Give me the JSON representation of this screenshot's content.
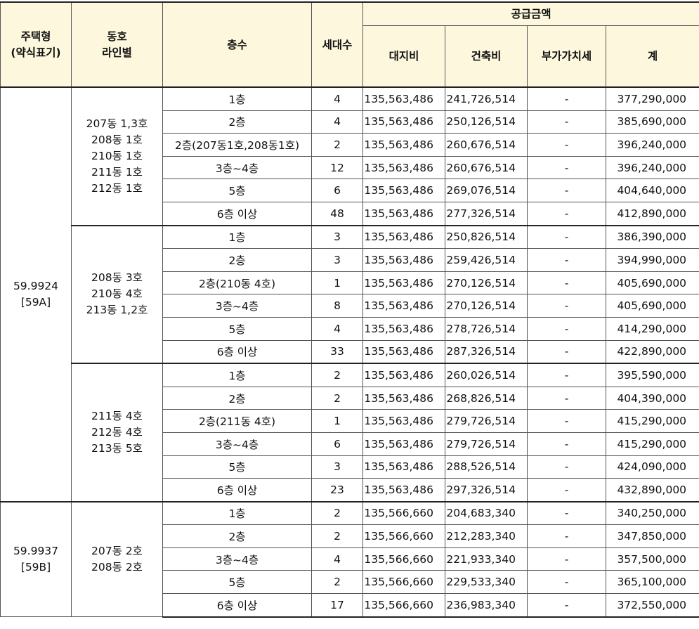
{
  "headers": {
    "type": "주택형\n(약식표기)",
    "line": "동호\n라인별",
    "floor": "층수",
    "units": "세대수",
    "supply": "공급금액",
    "land": "대지비",
    "build": "건축비",
    "vat": "부가가치세",
    "total": "계"
  },
  "groups": [
    {
      "type": "59.9924\n[59A]",
      "subgroups": [
        {
          "line": "207동 1,3호\n208동 1호\n210동 1호\n211동 1호\n212동 1호",
          "rows": [
            {
              "floor": "1층",
              "units": "4",
              "land": "135,563,486",
              "build": "241,726,514",
              "vat": "-",
              "total": "377,290,000"
            },
            {
              "floor": "2층",
              "units": "4",
              "land": "135,563,486",
              "build": "250,126,514",
              "vat": "-",
              "total": "385,690,000"
            },
            {
              "floor": "2층(207동1호,208동1호)",
              "units": "2",
              "land": "135,563,486",
              "build": "260,676,514",
              "vat": "-",
              "total": "396,240,000"
            },
            {
              "floor": "3층~4층",
              "units": "12",
              "land": "135,563,486",
              "build": "260,676,514",
              "vat": "-",
              "total": "396,240,000"
            },
            {
              "floor": "5층",
              "units": "6",
              "land": "135,563,486",
              "build": "269,076,514",
              "vat": "-",
              "total": "404,640,000"
            },
            {
              "floor": "6층 이상",
              "units": "48",
              "land": "135,563,486",
              "build": "277,326,514",
              "vat": "-",
              "total": "412,890,000"
            }
          ]
        },
        {
          "line": "208동 3호\n210동  4호\n213동 1,2호",
          "rows": [
            {
              "floor": "1층",
              "units": "3",
              "land": "135,563,486",
              "build": "250,826,514",
              "vat": "-",
              "total": "386,390,000"
            },
            {
              "floor": "2층",
              "units": "3",
              "land": "135,563,486",
              "build": "259,426,514",
              "vat": "-",
              "total": "394,990,000"
            },
            {
              "floor": "2층(210동 4호)",
              "units": "1",
              "land": "135,563,486",
              "build": "270,126,514",
              "vat": "-",
              "total": "405,690,000"
            },
            {
              "floor": "3층~4층",
              "units": "8",
              "land": "135,563,486",
              "build": "270,126,514",
              "vat": "-",
              "total": "405,690,000"
            },
            {
              "floor": "5층",
              "units": "4",
              "land": "135,563,486",
              "build": "278,726,514",
              "vat": "-",
              "total": "414,290,000"
            },
            {
              "floor": "6층 이상",
              "units": "33",
              "land": "135,563,486",
              "build": "287,326,514",
              "vat": "-",
              "total": "422,890,000"
            }
          ]
        },
        {
          "line": "211동 4호\n212동 4호\n213동 5호",
          "rows": [
            {
              "floor": "1층",
              "units": "2",
              "land": "135,563,486",
              "build": "260,026,514",
              "vat": "-",
              "total": "395,590,000"
            },
            {
              "floor": "2층",
              "units": "2",
              "land": "135,563,486",
              "build": "268,826,514",
              "vat": "-",
              "total": "404,390,000"
            },
            {
              "floor": "2층(211동 4호)",
              "units": "1",
              "land": "135,563,486",
              "build": "279,726,514",
              "vat": "-",
              "total": "415,290,000"
            },
            {
              "floor": "3층~4층",
              "units": "6",
              "land": "135,563,486",
              "build": "279,726,514",
              "vat": "-",
              "total": "415,290,000"
            },
            {
              "floor": "5층",
              "units": "3",
              "land": "135,563,486",
              "build": "288,526,514",
              "vat": "-",
              "total": "424,090,000"
            },
            {
              "floor": "6층 이상",
              "units": "23",
              "land": "135,563,486",
              "build": "297,326,514",
              "vat": "-",
              "total": "432,890,000"
            }
          ]
        }
      ]
    },
    {
      "type": "59.9937\n[59B]",
      "subgroups": [
        {
          "line": "207동 2호\n208동 2호",
          "rows": [
            {
              "floor": "1층",
              "units": "2",
              "land": "135,566,660",
              "build": "204,683,340",
              "vat": "-",
              "total": "340,250,000"
            },
            {
              "floor": "2층",
              "units": "2",
              "land": "135,566,660",
              "build": "212,283,340",
              "vat": "-",
              "total": "347,850,000"
            },
            {
              "floor": "3층~4층",
              "units": "4",
              "land": "135,566,660",
              "build": "221,933,340",
              "vat": "-",
              "total": "357,500,000"
            },
            {
              "floor": "5층",
              "units": "2",
              "land": "135,566,660",
              "build": "229,533,340",
              "vat": "-",
              "total": "365,100,000"
            },
            {
              "floor": "6층 이상",
              "units": "17",
              "land": "135,566,660",
              "build": "236,983,340",
              "vat": "-",
              "total": "372,550,000"
            }
          ]
        }
      ]
    }
  ]
}
